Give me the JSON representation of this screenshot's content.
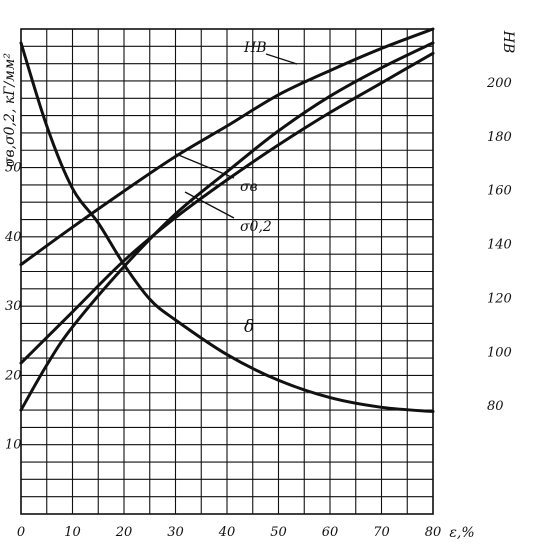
{
  "chart_data": {
    "type": "line",
    "xlabel": "ε,%",
    "ylabel_left": "σв,σ0,2, кГ/мм²",
    "ylabel_right": "HB",
    "x_ticks": [
      0,
      10,
      20,
      30,
      40,
      50,
      60,
      70,
      80
    ],
    "x_tick_labels": [
      "0",
      "10",
      "20",
      "30",
      "40",
      "50",
      "60",
      "70",
      "80"
    ],
    "y_left_ticks": [
      10,
      20,
      30,
      40,
      50
    ],
    "y_left_tick_labels": [
      "10",
      "20",
      "30",
      "40",
      "50"
    ],
    "y_right_ticks": [
      80,
      100,
      120,
      140,
      160,
      180,
      200
    ],
    "y_right_tick_labels": [
      "80",
      "100",
      "120",
      "140",
      "160",
      "180",
      "200"
    ],
    "xlim": [
      0,
      80
    ],
    "ylim_left": [
      0,
      70
    ],
    "ylim_right": [
      40,
      220
    ],
    "grid": true,
    "series": [
      {
        "name": "HB",
        "axis": "right",
        "x": [
          0,
          10,
          20,
          30,
          40,
          50,
          60,
          70,
          80
        ],
        "y": [
          96,
          115,
          134,
          150,
          164,
          177,
          189,
          200,
          211
        ]
      },
      {
        "name": "σв",
        "axis": "left",
        "x": [
          0,
          10,
          20,
          30,
          40,
          50,
          60,
          70,
          80
        ],
        "y": [
          36,
          41.4,
          46.6,
          51.6,
          56,
          60.5,
          64,
          67.2,
          70
        ]
      },
      {
        "name": "σ0,2",
        "axis": "left",
        "x": [
          0,
          5,
          10,
          20,
          30,
          40,
          50,
          60,
          70,
          80
        ],
        "y": [
          15,
          21.5,
          27,
          35.7,
          43.3,
          49.4,
          55.3,
          60.3,
          64.4,
          68
        ]
      },
      {
        "name": "δ",
        "axis": "left",
        "x": [
          0,
          5,
          10,
          15,
          20,
          25,
          30,
          40,
          50,
          60,
          70,
          80
        ],
        "y": [
          68,
          56,
          47,
          42,
          36,
          31,
          28,
          23,
          19.3,
          16.8,
          15.4,
          14.8
        ]
      }
    ]
  }
}
